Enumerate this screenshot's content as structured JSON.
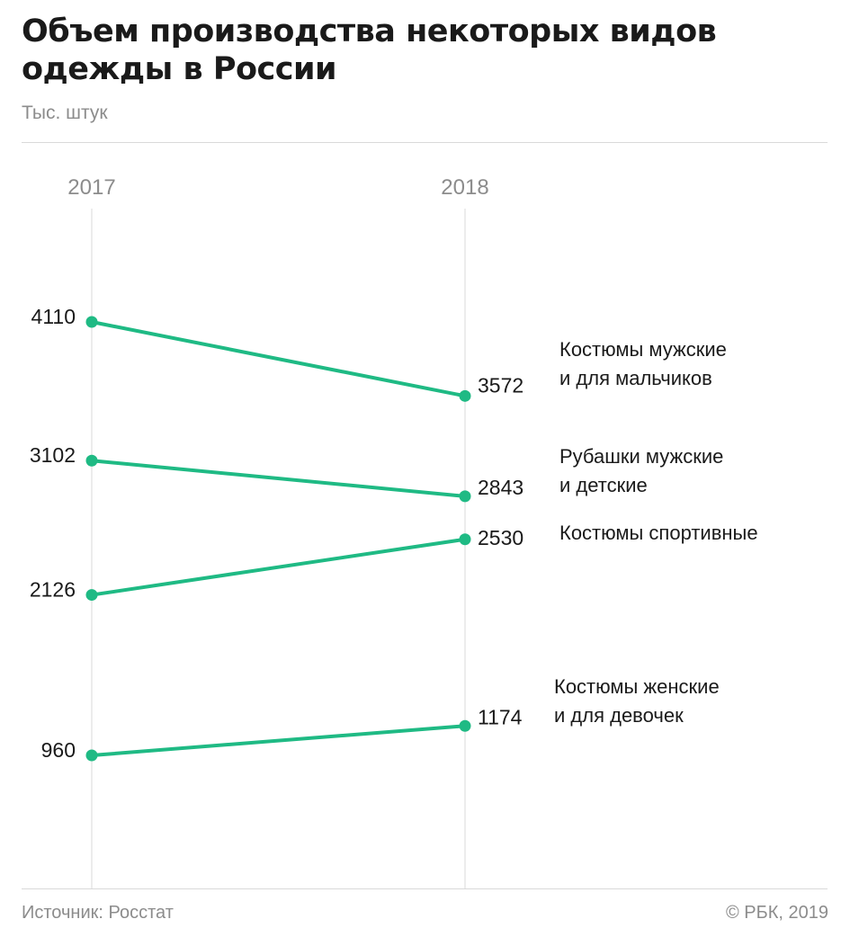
{
  "title": "Объем производства некоторых видов одежды в России",
  "subtitle": "Тыс. штук",
  "footer": {
    "source": "Источник: Росстат",
    "copyright": "© РБК, 2019"
  },
  "colors": {
    "line": "#1fba84",
    "axis": "#d9d9d9",
    "muted": "#8c8c8c",
    "text": "#1a1a1a"
  },
  "chart_data": {
    "type": "line",
    "title": "Объем производства некоторых видов одежды в России",
    "subtitle": "Тыс. штук",
    "x": [
      "2017",
      "2018"
    ],
    "ylim": [
      0,
      4600
    ],
    "grid": false,
    "legend": "labels at line ends",
    "series": [
      {
        "name": "Костюмы мужские и для мальчиков",
        "label_lines": [
          "Костюмы мужские",
          "и для мальчиков"
        ],
        "values": [
          4110,
          3572
        ],
        "value_labels": [
          "4110",
          "3572"
        ]
      },
      {
        "name": "Рубашки мужские и детские",
        "label_lines": [
          "Рубашки мужские",
          "и детские"
        ],
        "values": [
          3102,
          2843
        ],
        "value_labels": [
          "3102",
          "2843"
        ]
      },
      {
        "name": "Костюмы спортивные",
        "label_lines": [
          "Костюмы спортивные"
        ],
        "values": [
          2126,
          2530
        ],
        "value_labels": [
          "2126",
          "2530"
        ]
      },
      {
        "name": "Костюмы женские и для девочек",
        "label_lines": [
          "Костюмы женские",
          "и для девочек"
        ],
        "values": [
          960,
          1174
        ],
        "value_labels": [
          "960",
          "1174"
        ]
      }
    ]
  }
}
